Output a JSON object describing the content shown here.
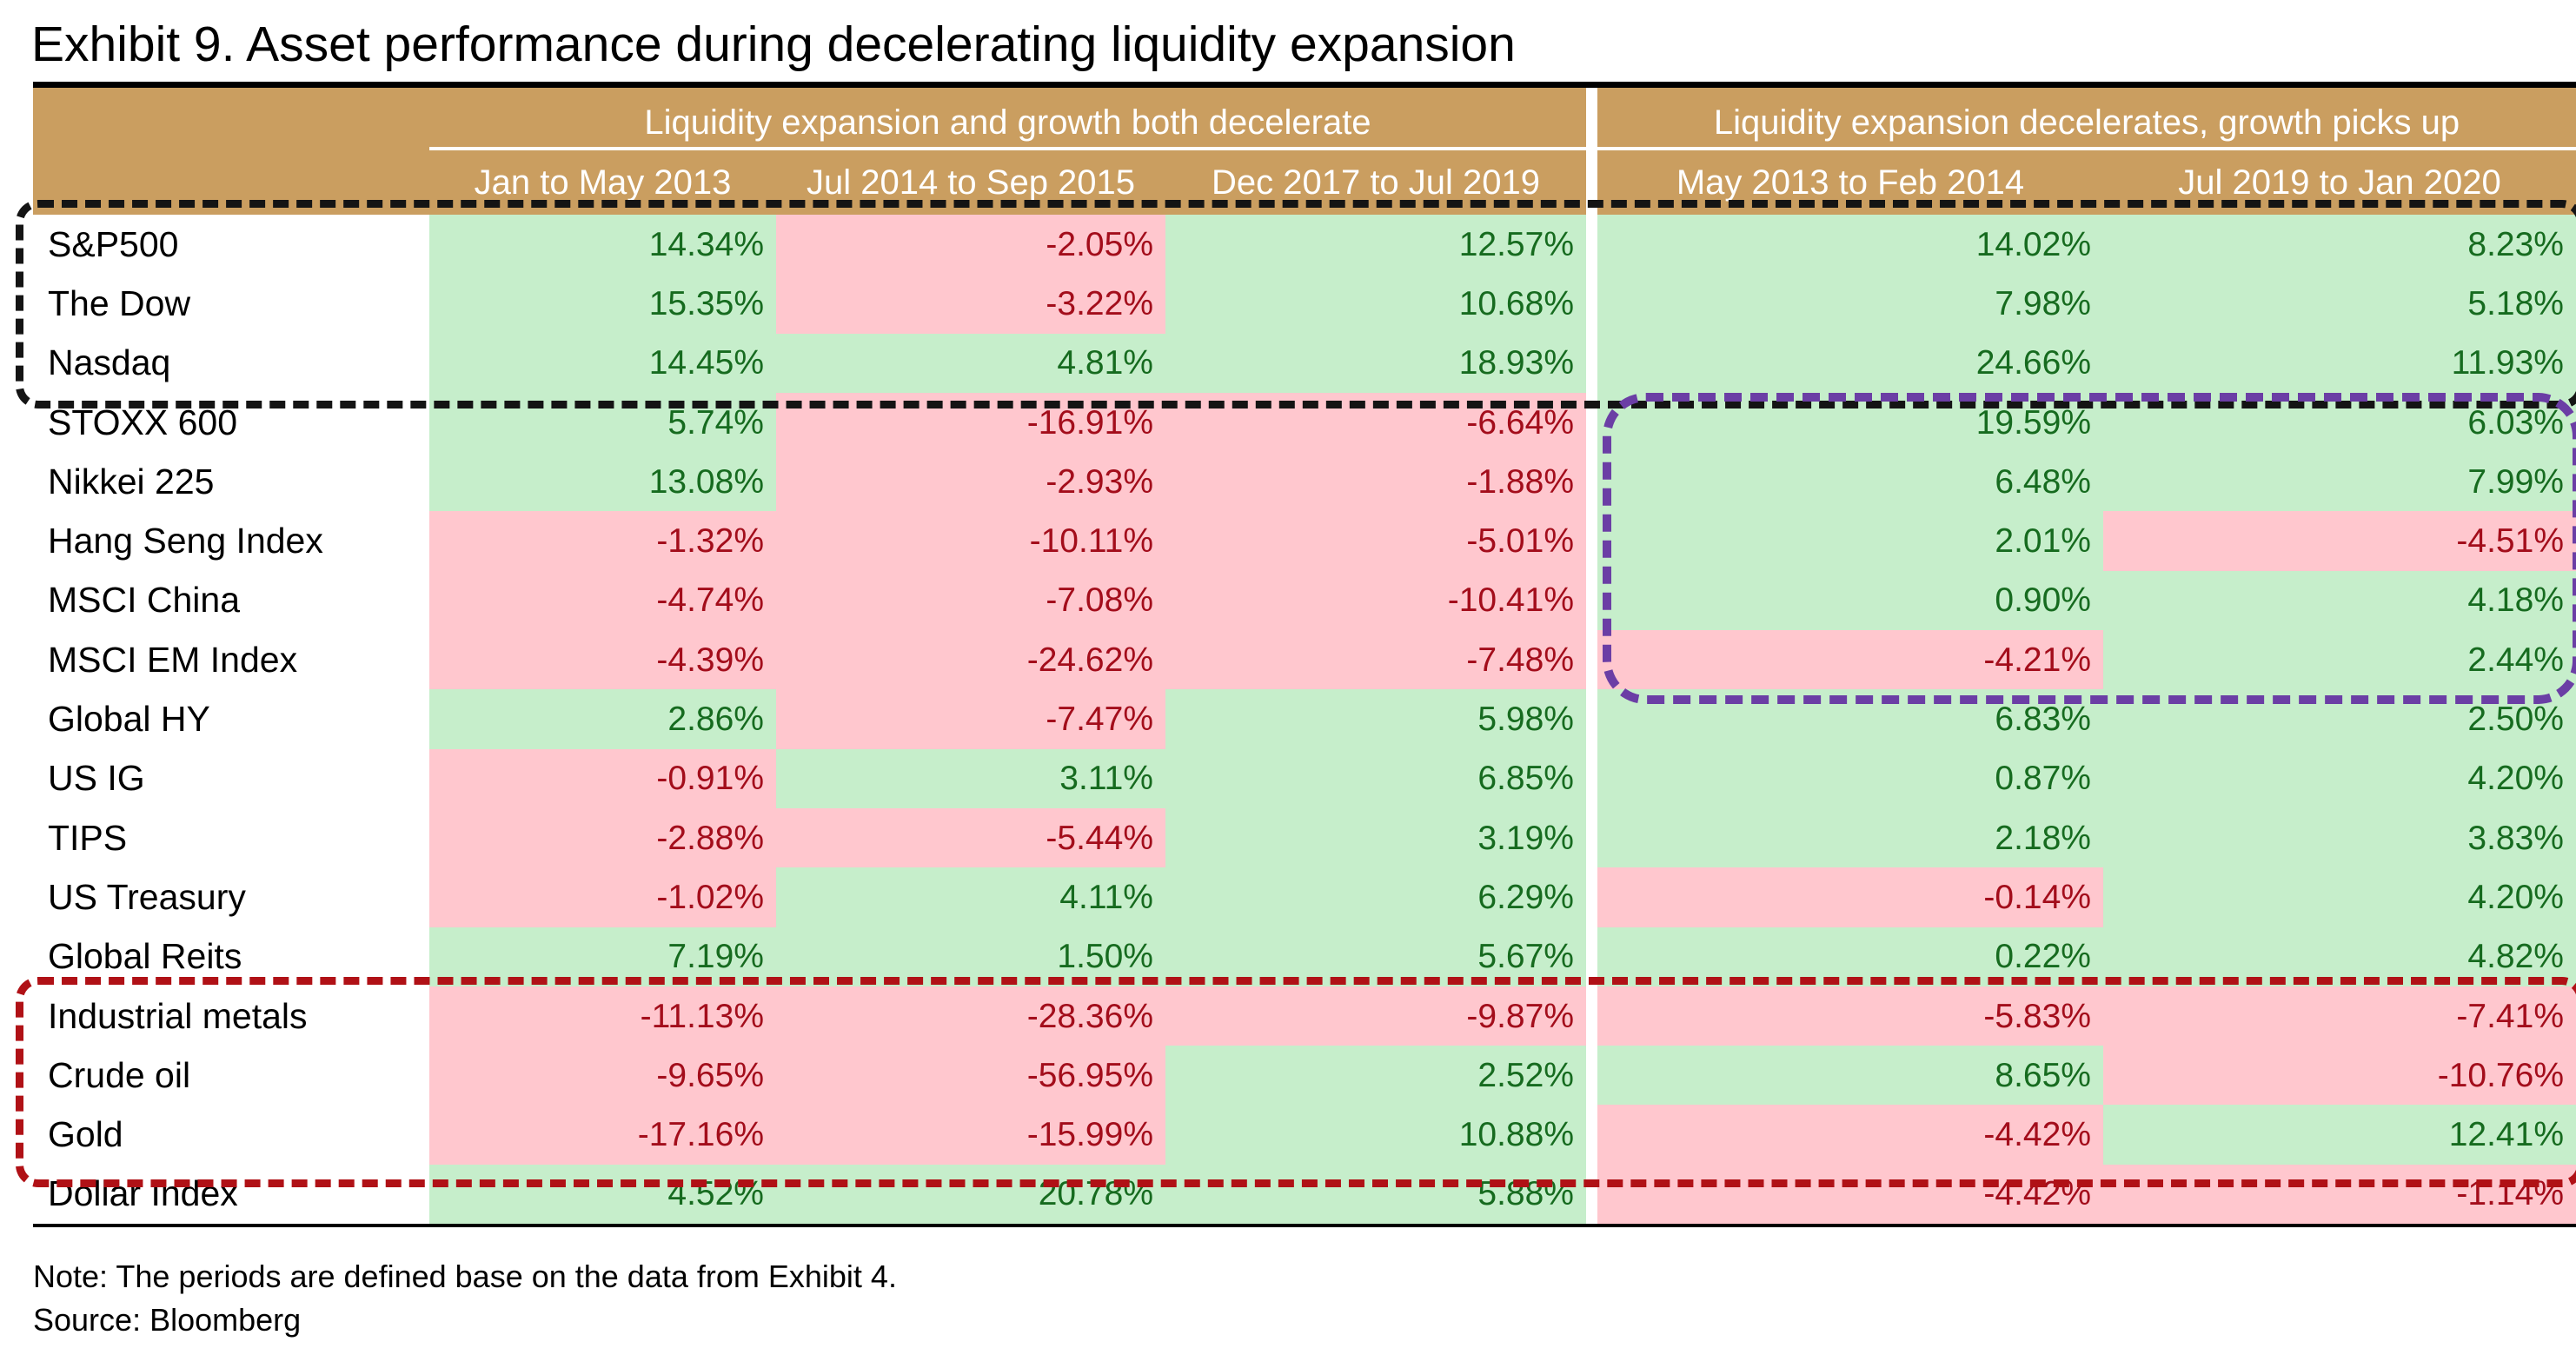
{
  "title": "Exhibit 9. Asset performance during decelerating liquidity expansion",
  "notes": [
    "Note: The periods are defined base on the data from Exhibit 4.",
    "Source: Bloomberg"
  ],
  "theme": {
    "header_bg": "#CA9E60",
    "header_text": "#FFFFFF",
    "positive_bg": "#C6EECB",
    "positive_text": "#166B1F",
    "negative_bg": "#FFC7CE",
    "negative_text": "#A30D1B",
    "box_black": "#141414",
    "box_purple": "#6B3EA5",
    "box_red": "#B01116"
  },
  "chart_data": {
    "type": "table",
    "title": "Exhibit 9. Asset performance during decelerating liquidity expansion",
    "column_groups": [
      {
        "label": "Liquidity expansion and growth both decelerate",
        "columns": [
          "Jan to May 2013",
          "Jul 2014 to Sep 2015",
          "Dec 2017 to Jul 2019"
        ]
      },
      {
        "label": "Liquidity expansion decelerates, growth picks up",
        "columns": [
          "May 2013 to Feb 2014",
          "Jul 2019 to Jan 2020"
        ]
      }
    ],
    "columns": [
      "Jan to May 2013",
      "Jul 2014 to Sep 2015",
      "Dec 2017 to Jul 2019",
      "May 2013 to Feb 2014",
      "Jul 2019 to Jan 2020"
    ],
    "value_format": "percent",
    "cell_color_rule": "green background for positive values, pink background for negative values",
    "rows": [
      {
        "label": "S&P500",
        "values": [
          "14.34%",
          "-2.05%",
          "12.57%",
          "14.02%",
          "8.23%"
        ]
      },
      {
        "label": "The Dow",
        "values": [
          "15.35%",
          "-3.22%",
          "10.68%",
          "7.98%",
          "5.18%"
        ]
      },
      {
        "label": "Nasdaq",
        "values": [
          "14.45%",
          "4.81%",
          "18.93%",
          "24.66%",
          "11.93%"
        ]
      },
      {
        "label": "STOXX 600",
        "values": [
          "5.74%",
          "-16.91%",
          "-6.64%",
          "19.59%",
          "6.03%"
        ]
      },
      {
        "label": "Nikkei 225",
        "values": [
          "13.08%",
          "-2.93%",
          "-1.88%",
          "6.48%",
          "7.99%"
        ]
      },
      {
        "label": "Hang Seng Index",
        "values": [
          "-1.32%",
          "-10.11%",
          "-5.01%",
          "2.01%",
          "-4.51%"
        ]
      },
      {
        "label": "MSCI China",
        "values": [
          "-4.74%",
          "-7.08%",
          "-10.41%",
          "0.90%",
          "4.18%"
        ]
      },
      {
        "label": "MSCI EM Index",
        "values": [
          "-4.39%",
          "-24.62%",
          "-7.48%",
          "-4.21%",
          "2.44%"
        ]
      },
      {
        "label": "Global HY",
        "values": [
          "2.86%",
          "-7.47%",
          "5.98%",
          "6.83%",
          "2.50%"
        ]
      },
      {
        "label": "US IG",
        "values": [
          "-0.91%",
          "3.11%",
          "6.85%",
          "0.87%",
          "4.20%"
        ]
      },
      {
        "label": "TIPS",
        "values": [
          "-2.88%",
          "-5.44%",
          "3.19%",
          "2.18%",
          "3.83%"
        ]
      },
      {
        "label": "US Treasury",
        "values": [
          "-1.02%",
          "4.11%",
          "6.29%",
          "-0.14%",
          "4.20%"
        ]
      },
      {
        "label": "Global Reits",
        "values": [
          "7.19%",
          "1.50%",
          "5.67%",
          "0.22%",
          "4.82%"
        ]
      },
      {
        "label": "Industrial metals",
        "values": [
          "-11.13%",
          "-28.36%",
          "-9.87%",
          "-5.83%",
          "-7.41%"
        ]
      },
      {
        "label": "Crude oil",
        "values": [
          "-9.65%",
          "-56.95%",
          "2.52%",
          "8.65%",
          "-10.76%"
        ]
      },
      {
        "label": "Gold",
        "values": [
          "-17.16%",
          "-15.99%",
          "10.88%",
          "-4.42%",
          "12.41%"
        ]
      },
      {
        "label": "Dollar Index",
        "values": [
          "4.52%",
          "20.78%",
          "5.88%",
          "-4.42%",
          "-1.14%"
        ]
      }
    ],
    "annotations": [
      {
        "style": "black-dashed-box",
        "color": "#141414",
        "rows": [
          "S&P500",
          "The Dow",
          "Nasdaq"
        ],
        "columns": "all"
      },
      {
        "style": "purple-dashed-box",
        "color": "#6B3EA5",
        "rows": [
          "STOXX 600",
          "Nikkei 225",
          "Hang Seng Index",
          "MSCI China",
          "MSCI EM Index"
        ],
        "columns": [
          "May 2013 to Feb 2014",
          "Jul 2019 to Jan 2020"
        ]
      },
      {
        "style": "red-dashed-box",
        "color": "#B01116",
        "rows": [
          "Industrial metals",
          "Crude oil",
          "Gold"
        ],
        "columns": "all"
      }
    ],
    "layout": {
      "grid": "off",
      "legend": "none"
    }
  }
}
